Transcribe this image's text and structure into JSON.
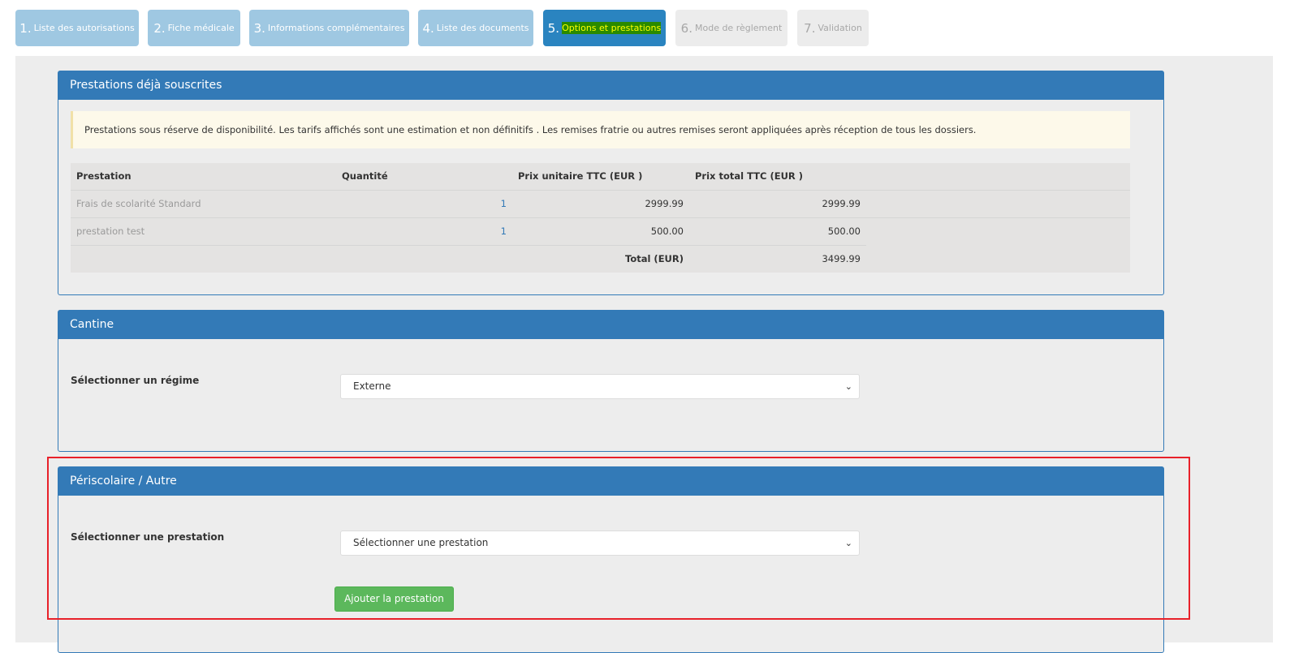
{
  "steps": [
    {
      "num": "1.",
      "label": "Liste des autorisations"
    },
    {
      "num": "2.",
      "label": "Fiche médicale"
    },
    {
      "num": "3.",
      "label": "Informations complémentaires"
    },
    {
      "num": "4.",
      "label": "Liste des documents"
    },
    {
      "num": "5.",
      "label": "Options et prestations"
    },
    {
      "num": "6.",
      "label": "Mode de règlement"
    },
    {
      "num": "7.",
      "label": "Validation"
    }
  ],
  "subscribed": {
    "title": "Prestations déjà souscrites",
    "notice": "Prestations sous réserve de disponibilité. Les tarifs affichés sont une estimation et non définitifs . Les remises fratrie ou autres remises seront appliquées après réception de tous les dossiers.",
    "columns": [
      "Prestation",
      "Quantité",
      "Prix unitaire TTC (EUR )",
      "Prix total TTC (EUR )"
    ],
    "rows": [
      {
        "name": "Frais de scolarité Standard",
        "qty": "1",
        "unit": "2999.99",
        "total": "2999.99"
      },
      {
        "name": "prestation test",
        "qty": "1",
        "unit": "500.00",
        "total": "500.00"
      }
    ],
    "total_label": "Total (EUR)",
    "total_value": "3499.99"
  },
  "cantine": {
    "title": "Cantine",
    "label": "Sélectionner un régime",
    "value": "Externe"
  },
  "periscolaire": {
    "title": "Périscolaire / Autre",
    "label": "Sélectionner une prestation",
    "value": "Sélectionner une prestation",
    "button": "Ajouter la prestation"
  }
}
